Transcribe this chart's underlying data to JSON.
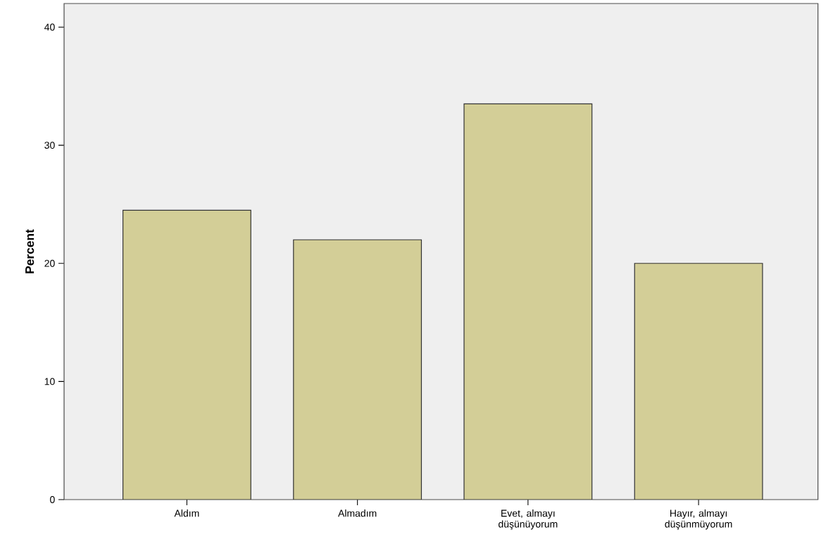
{
  "chart_data": {
    "type": "bar",
    "ylabel": "Percent",
    "categories": [
      "Aldım",
      "Almadım",
      "Evet, almayı düşünüyorum",
      "Hayır, almayı düşünmüyorum"
    ],
    "values": [
      24.5,
      22.0,
      33.5,
      20.0
    ],
    "color": "#d3ce97",
    "ylim": [
      0,
      42
    ],
    "yticks": [
      0,
      10,
      20,
      30,
      40
    ],
    "grid": false
  }
}
